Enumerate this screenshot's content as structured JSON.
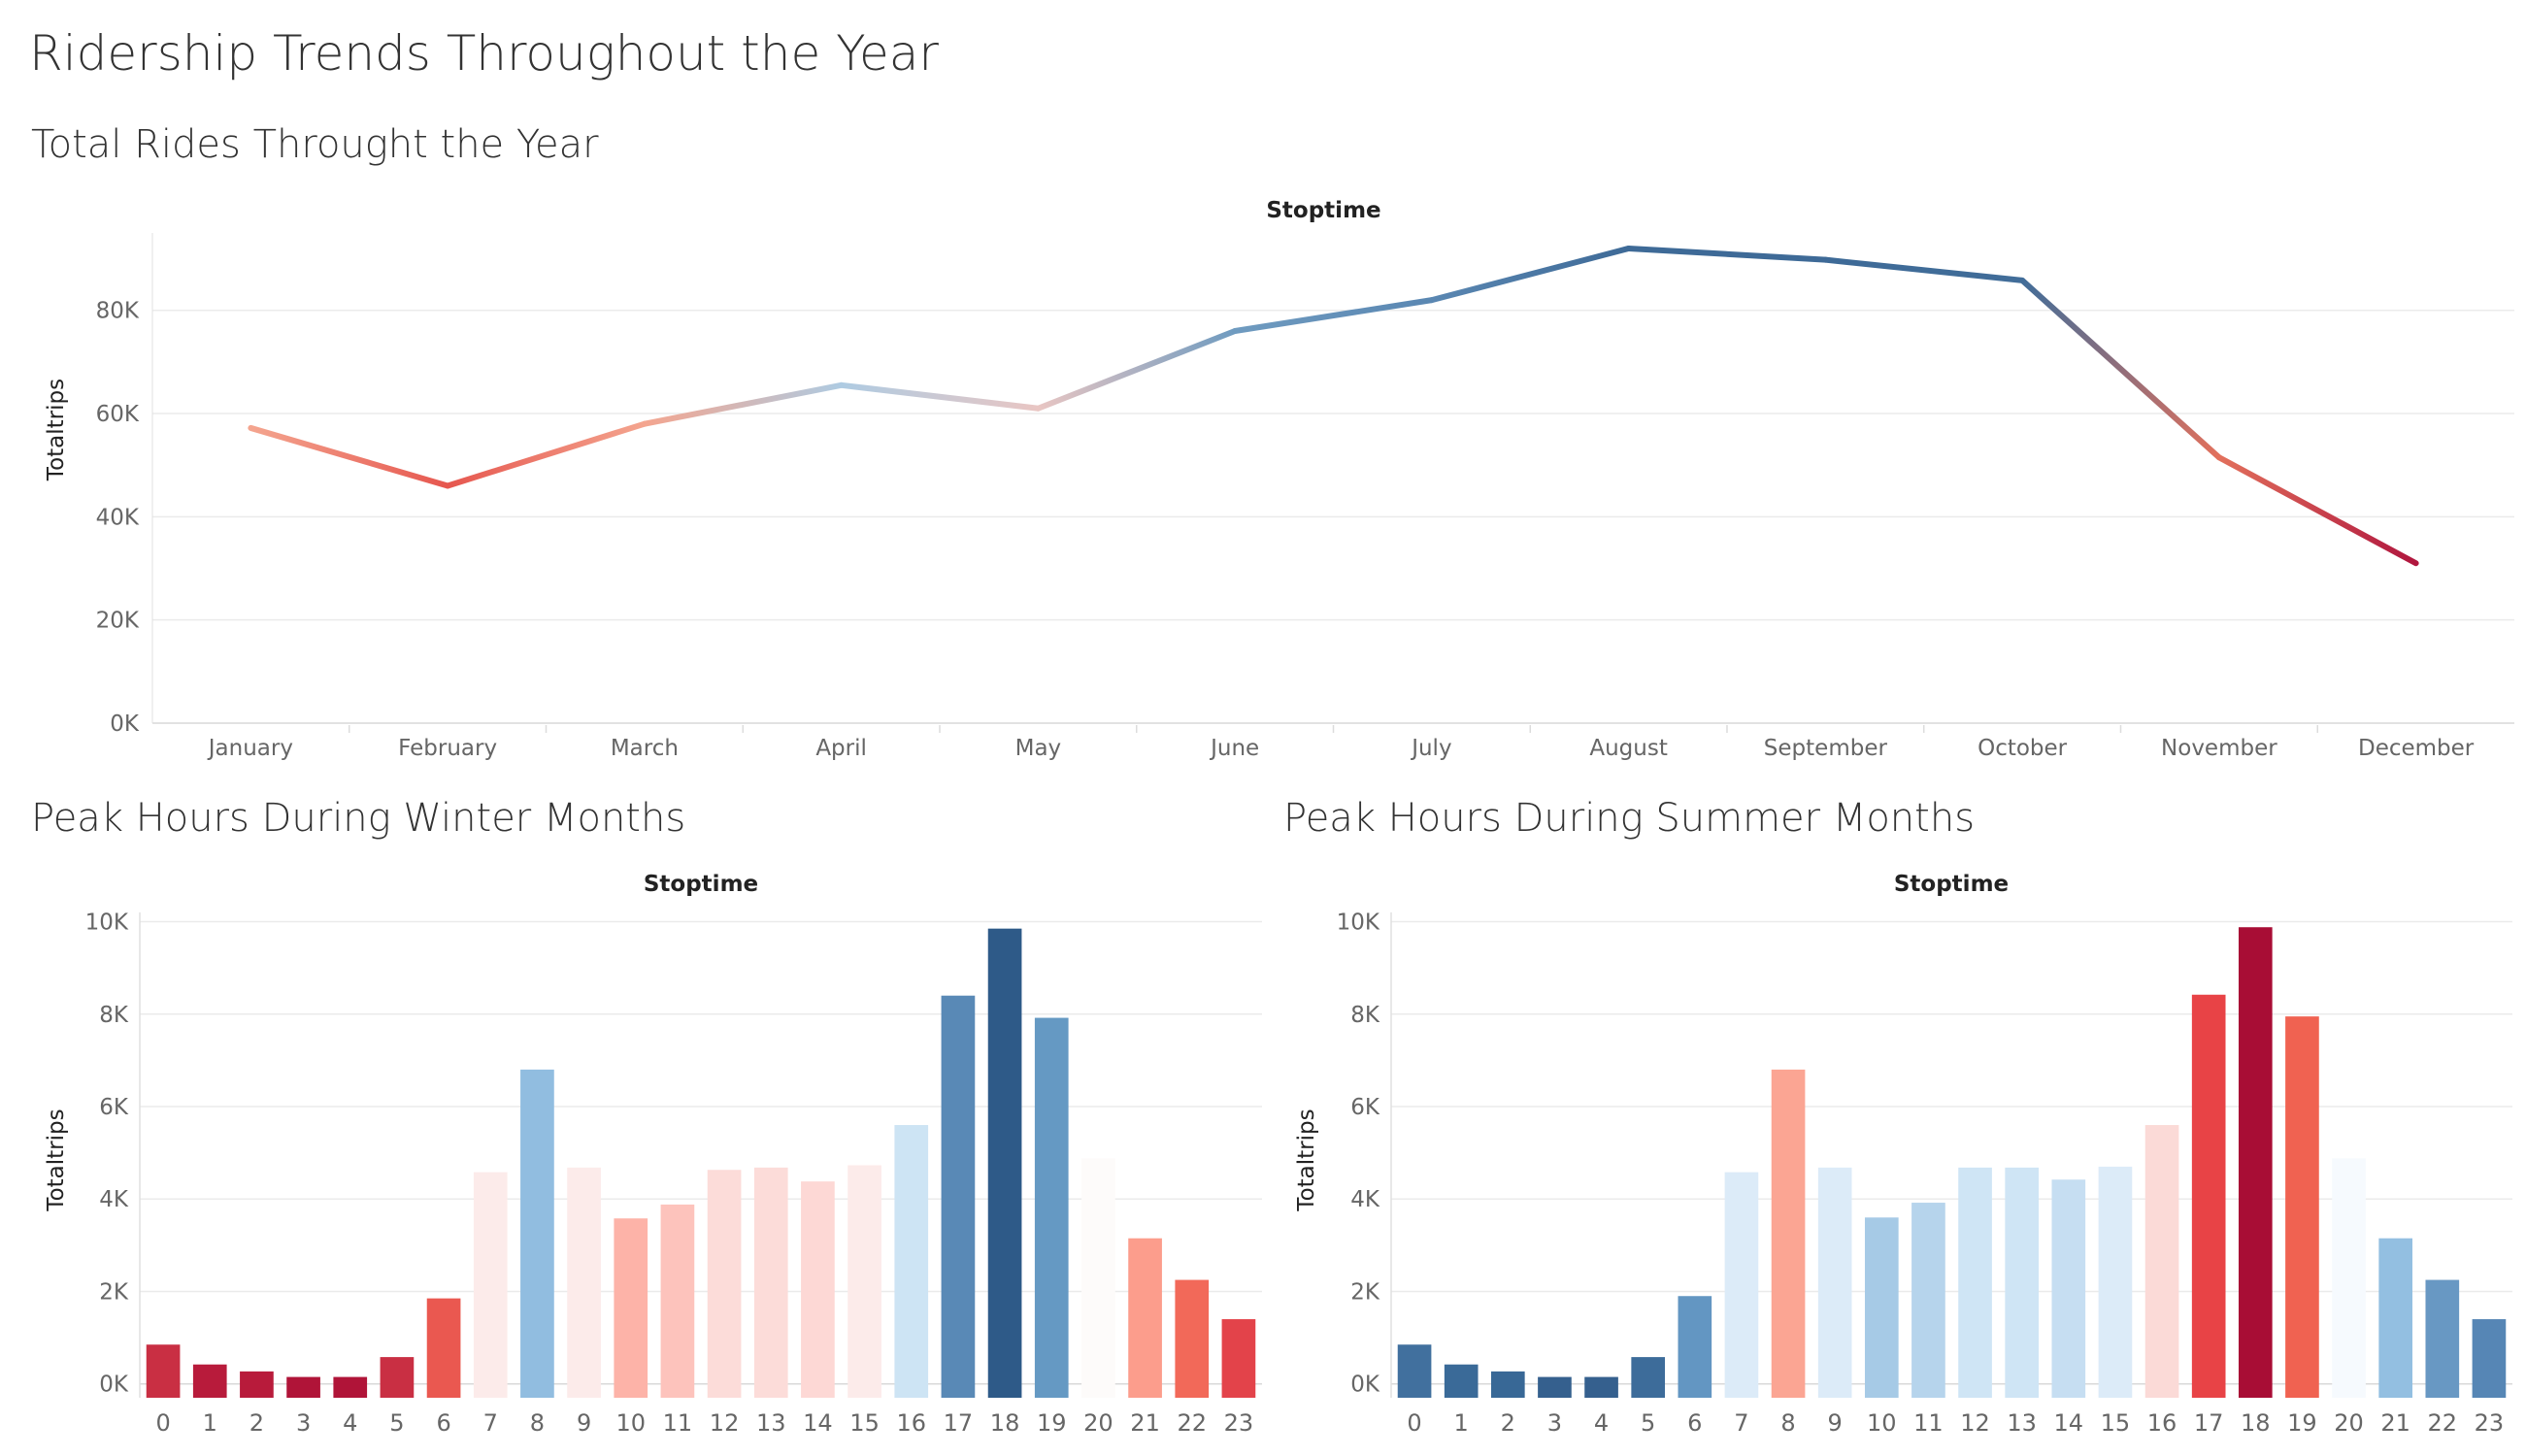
{
  "dashboard": {
    "title": "Ridership Trends Throughout the Year"
  },
  "chart_data": [
    {
      "type": "line",
      "title": "Total Rides Throught the Year",
      "column_header": "Stoptime",
      "ylabel": "Totaltrips",
      "x": [
        "January",
        "February",
        "March",
        "April",
        "May",
        "June",
        "July",
        "August",
        "September",
        "October",
        "November",
        "December"
      ],
      "y": [
        57200,
        46000,
        58000,
        65500,
        61000,
        76000,
        82000,
        92000,
        89800,
        85800,
        51500,
        31000
      ],
      "ylim": [
        0,
        95000
      ],
      "yticks": [
        0,
        20000,
        40000,
        60000,
        80000
      ],
      "ytick_labels": [
        "0K",
        "20K",
        "40K",
        "60K",
        "80K"
      ],
      "grid": true,
      "point_colors": [
        "#f4a58f",
        "#e6574f",
        "#f4a58f",
        "#aecbe2",
        "#e9c6c3",
        "#6f9bc0",
        "#5a87b2",
        "#3e6a97",
        "#3e6a97",
        "#416d99",
        "#e2705c",
        "#b0163e"
      ]
    },
    {
      "type": "bar",
      "title": "Peak Hours During Winter Months",
      "column_header": "Stoptime",
      "ylabel": "Totaltrips",
      "categories": [
        "0",
        "1",
        "2",
        "3",
        "4",
        "5",
        "6",
        "7",
        "8",
        "9",
        "10",
        "11",
        "12",
        "13",
        "14",
        "15",
        "16",
        "17",
        "18",
        "19",
        "20",
        "21",
        "22",
        "23"
      ],
      "values": [
        850,
        420,
        270,
        150,
        150,
        580,
        1850,
        4580,
        6800,
        4680,
        3580,
        3880,
        4630,
        4680,
        4380,
        4730,
        5600,
        8400,
        9850,
        7920,
        4880,
        3150,
        2250,
        1400
      ],
      "ylim": [
        -300,
        10200
      ],
      "yticks": [
        0,
        2000,
        4000,
        6000,
        8000,
        10000
      ],
      "ytick_labels": [
        "0K",
        "2K",
        "4K",
        "6K",
        "8K",
        "10K"
      ],
      "grid": true,
      "bar_colors": [
        "#c92f43",
        "#b81b3b",
        "#b81b3b",
        "#b01438",
        "#b01438",
        "#c92f43",
        "#ea5850",
        "#fcebea",
        "#91bde0",
        "#fcebea",
        "#fdb3a8",
        "#fdc3bc",
        "#fcdcd9",
        "#fcdcd9",
        "#fdd8d5",
        "#fcebea",
        "#cde4f4",
        "#5989b6",
        "#2e5a88",
        "#6599c3",
        "#fdfbfa",
        "#fc9d8c",
        "#f26959",
        "#e3434a"
      ]
    },
    {
      "type": "bar",
      "title": "Peak Hours During Summer Months",
      "column_header": "Stoptime",
      "ylabel": "Totaltrips",
      "categories": [
        "0",
        "1",
        "2",
        "3",
        "4",
        "5",
        "6",
        "7",
        "8",
        "9",
        "10",
        "11",
        "12",
        "13",
        "14",
        "15",
        "16",
        "17",
        "18",
        "19",
        "20",
        "21",
        "22",
        "23"
      ],
      "values": [
        850,
        420,
        270,
        150,
        150,
        580,
        1900,
        4580,
        6800,
        4680,
        3600,
        3920,
        4680,
        4680,
        4420,
        4700,
        5600,
        8420,
        9880,
        7950,
        4880,
        3150,
        2250,
        1400
      ],
      "ylim": [
        -300,
        10200
      ],
      "yticks": [
        0,
        2000,
        4000,
        6000,
        8000,
        10000
      ],
      "ytick_labels": [
        "0K",
        "2K",
        "4K",
        "6K",
        "8K",
        "10K"
      ],
      "grid": true,
      "bar_colors": [
        "#41709e",
        "#3a6a98",
        "#386896",
        "#35608e",
        "#35608e",
        "#3d6c9a",
        "#6396c2",
        "#dcebf8",
        "#fba593",
        "#dcebf8",
        "#a6cae6",
        "#b6d4ec",
        "#cfe5f5",
        "#cfe5f5",
        "#c6def2",
        "#dcebf8",
        "#fbdad7",
        "#e84346",
        "#a80d35",
        "#f06251",
        "#f6fafe",
        "#93bfe1",
        "#6898c3",
        "#5686b5"
      ]
    }
  ]
}
